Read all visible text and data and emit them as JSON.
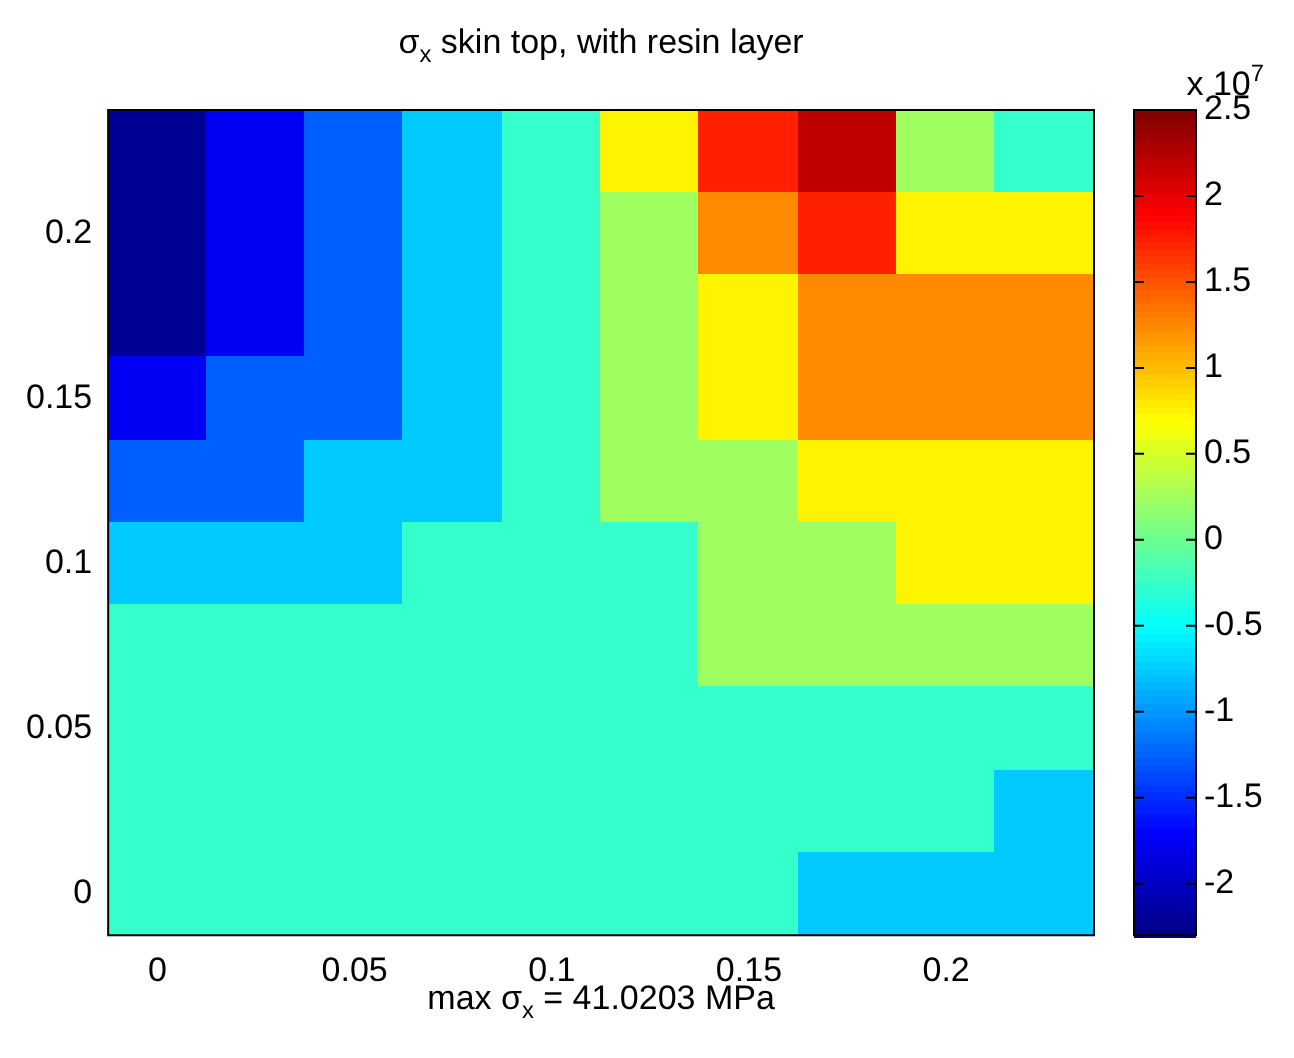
{
  "chart_data": {
    "type": "heatmap",
    "title": "σ$_{x}$ skin top, with resin layer",
    "clabel": "x 10$^{7}$",
    "annotations": [
      "max σ$_{x}$ = 41.0203 MPa"
    ],
    "categories": [
      "0",
      null,
      "0.05",
      null,
      "0.1",
      null,
      "0.15",
      null,
      "0.2",
      null
    ],
    "y_categories": [
      null,
      "0.2",
      null,
      "0.15",
      null,
      "0.1",
      null,
      "0.05",
      null,
      "0"
    ],
    "clim": [
      -2.3,
      2.5
    ],
    "cticks": [
      -2,
      -1.5,
      -1,
      -0.5,
      0,
      0.5,
      1,
      1.5,
      2,
      2.5
    ],
    "cells": [
      [
        -2.2,
        -1.75,
        -1.25,
        -0.75,
        -0.25,
        0.75,
        1.75,
        2.2,
        0.25,
        -0.25
      ],
      [
        -2.2,
        -1.75,
        -1.25,
        -0.75,
        -0.25,
        0.25,
        1.25,
        1.75,
        0.75,
        0.75
      ],
      [
        -2.2,
        -1.75,
        -1.25,
        -0.75,
        -0.25,
        0.25,
        0.75,
        1.25,
        1.25,
        1.25
      ],
      [
        -1.75,
        -1.25,
        -1.25,
        -0.75,
        -0.25,
        0.25,
        0.75,
        1.25,
        1.25,
        1.25
      ],
      [
        -1.25,
        -1.25,
        -0.75,
        -0.75,
        -0.25,
        0.25,
        0.25,
        0.75,
        0.75,
        0.75
      ],
      [
        -0.75,
        -0.75,
        -0.75,
        -0.25,
        -0.25,
        -0.25,
        0.25,
        0.25,
        0.75,
        0.75
      ],
      [
        -0.25,
        -0.25,
        -0.25,
        -0.25,
        -0.25,
        -0.25,
        0.25,
        0.25,
        0.25,
        0.25
      ],
      [
        -0.25,
        -0.25,
        -0.25,
        -0.25,
        -0.25,
        -0.25,
        -0.25,
        -0.25,
        -0.25,
        -0.25
      ],
      [
        -0.25,
        -0.25,
        -0.25,
        -0.25,
        -0.25,
        -0.25,
        -0.25,
        -0.25,
        -0.25,
        -0.75
      ],
      [
        -0.25,
        -0.25,
        -0.25,
        -0.25,
        -0.25,
        -0.25,
        -0.25,
        -0.75,
        -0.75,
        -0.75
      ]
    ]
  }
}
